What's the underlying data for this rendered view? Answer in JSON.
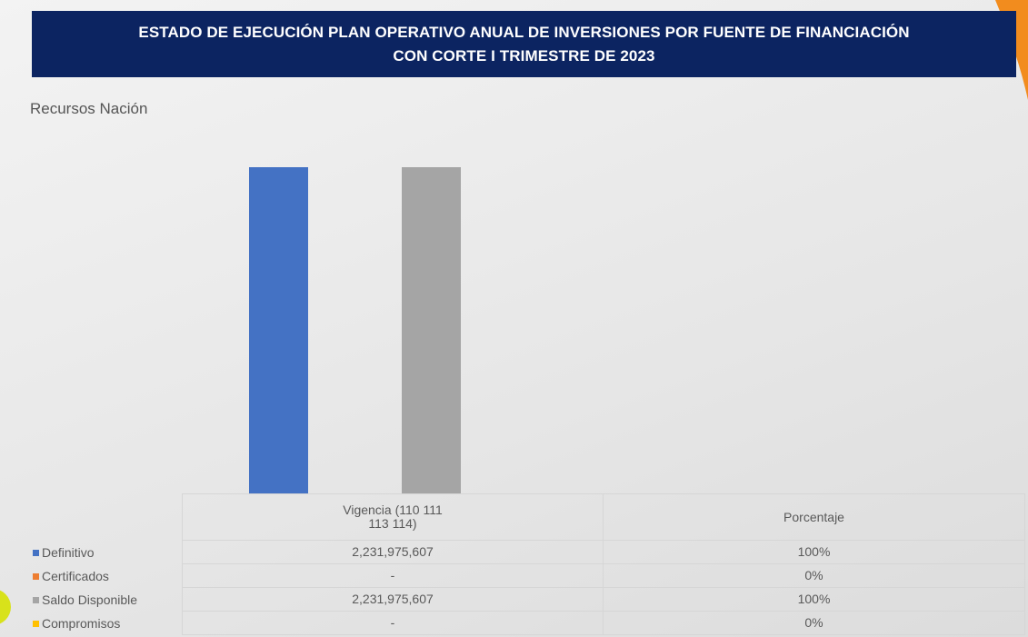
{
  "chart_data": {
    "type": "bar",
    "title": [
      "ESTADO DE EJECUCIÓN PLAN OPERATIVO ANUAL DE INVERSIONES POR FUENTE DE FINANCIACIÓN",
      "CON CORTE I TRIMESTRE DE 2023"
    ],
    "subtitle": "Recursos Nación",
    "categories": [
      "Vigencia (110 111 113 114)",
      "Porcentaje"
    ],
    "series": [
      {
        "name": "Definitivo",
        "color": "#4472c4",
        "values": [
          2231975607,
          100
        ],
        "value_labels": [
          "2,231,975,607",
          "100%"
        ]
      },
      {
        "name": "Certificados",
        "color": "#ed7d31",
        "values": [
          0,
          0
        ],
        "value_labels": [
          "-",
          "0%"
        ]
      },
      {
        "name": "Saldo Disponible",
        "color": "#a5a5a5",
        "values": [
          2231975607,
          100
        ],
        "value_labels": [
          "2,231,975,607",
          "100%"
        ]
      },
      {
        "name": "Compromisos",
        "color": "#ffc000",
        "values": [
          0,
          0
        ],
        "value_labels": [
          "-",
          "0%"
        ]
      }
    ]
  }
}
